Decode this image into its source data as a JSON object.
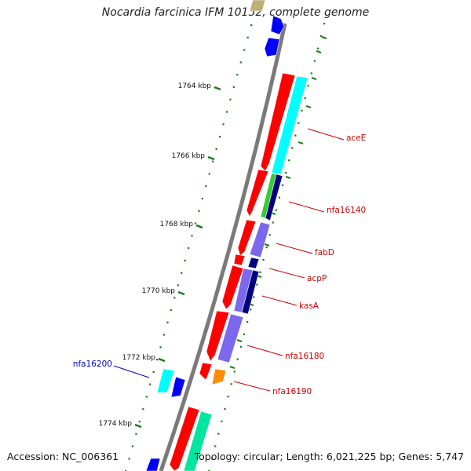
{
  "title": "Nocardia farcinica IFM 10152, complete genome",
  "footer": {
    "accession": "Accession: NC_006361",
    "topology": "Topology: circular; Length: 6,021,225 bp; Genes: 5,747"
  },
  "colors": {
    "backbone": "#7a7a7a",
    "tick": "#1a7a1a",
    "label_forward": "#cc0000",
    "label_reverse": "#0000cc",
    "red": "#ff0000",
    "cyan": "#00ffff",
    "navy": "#00007f",
    "slate": "#7b68ee",
    "green": "#33cc33",
    "orange": "#ff8c00",
    "blue": "#0000ff",
    "aquamarine": "#00e5a0",
    "tan": "#bdb07a"
  },
  "scale_ticks": [
    {
      "label": "1764 kbp",
      "pos": 1764
    },
    {
      "label": "1766 kbp",
      "pos": 1766
    },
    {
      "label": "1768 kbp",
      "pos": 1768
    },
    {
      "label": "1770 kbp",
      "pos": 1770
    },
    {
      "label": "1772 kbp",
      "pos": 1772
    },
    {
      "label": "1774 kbp",
      "pos": 1774
    }
  ],
  "gene_labels": [
    {
      "text": "aceE",
      "strand": "forward"
    },
    {
      "text": "nfa16140",
      "strand": "forward"
    },
    {
      "text": "fabD",
      "strand": "forward"
    },
    {
      "text": "acpP",
      "strand": "forward"
    },
    {
      "text": "kasA",
      "strand": "forward"
    },
    {
      "text": "nfa16180",
      "strand": "forward"
    },
    {
      "text": "nfa16190",
      "strand": "forward"
    },
    {
      "text": "nfa16200",
      "strand": "reverse"
    }
  ]
}
